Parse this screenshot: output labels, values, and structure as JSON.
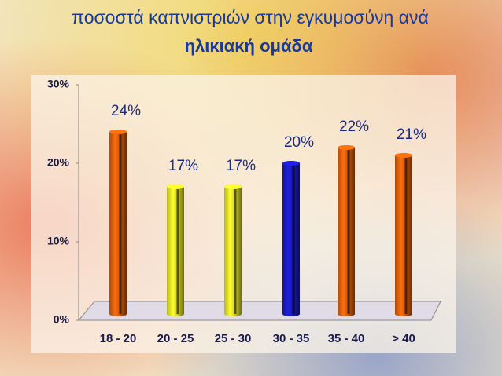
{
  "chart_data": {
    "type": "bar",
    "title": [
      "ποσοστά καπνιστριών στην εγκυμοσύνη ανά",
      "ηλικιακή ομάδα"
    ],
    "categories": [
      "18 - 20",
      "20 - 25",
      "25 - 30",
      "30 - 35",
      "35 - 40",
      "> 40"
    ],
    "values": [
      24,
      17,
      17,
      20,
      22,
      21
    ],
    "value_labels": [
      "24%",
      "17%",
      "17%",
      "20%",
      "22%",
      "21%"
    ],
    "colors": [
      "#e8640c",
      "#f2f22a",
      "#f2f22a",
      "#1c1cc8",
      "#e8640c",
      "#e8640c"
    ],
    "ylim": [
      0,
      30
    ],
    "yticks": [
      {
        "value": 0,
        "label": "0%"
      },
      {
        "value": 10,
        "label": "10%"
      },
      {
        "value": 20,
        "label": "20%"
      },
      {
        "value": 30,
        "label": "30%"
      }
    ]
  }
}
